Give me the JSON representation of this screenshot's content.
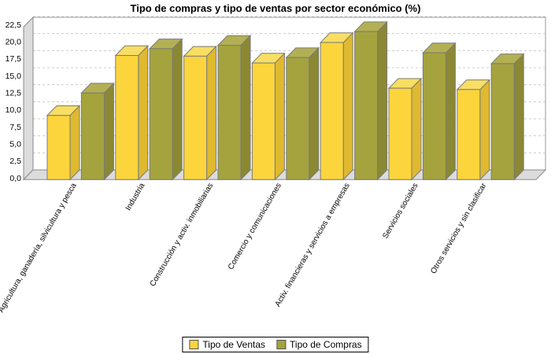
{
  "title": "Tipo de compras y tipo de ventas por sector económico (%)",
  "legend": {
    "items": [
      {
        "label": "Tipo de Ventas",
        "color": "#FCD53D"
      },
      {
        "label": "Tipo de Compras",
        "color": "#A5A33E"
      }
    ]
  },
  "colors": {
    "ventas": {
      "front": "#FCD53D",
      "top": "#F8DE62",
      "side": "#DFB92F"
    },
    "compras": {
      "front": "#A5A33E",
      "top": "#B3B054",
      "side": "#8A8833"
    },
    "bar_outline": "#7A7A7A",
    "wall_fill": "#DCDCDC",
    "wall_outline": "#888888",
    "gridline": "#CCCCCC",
    "plot_border": "#999999",
    "text": "#000000"
  },
  "chart_data": {
    "type": "bar",
    "effect": "3d",
    "title": "Tipo de compras y tipo de ventas por sector económico (%)",
    "categories": [
      "Agricultura, ganadería, silvicultura y pesca",
      "Industria",
      "Construcción y activ. inmobiliarias",
      "Comercio y comunicaciones",
      "Activ. financieras y servicios a empresas",
      "Servicios sociales",
      "Otros servicios y sin clasificar"
    ],
    "series": [
      {
        "name": "Tipo de Ventas",
        "values": [
          9.4,
          18.2,
          18.1,
          17.1,
          20.1,
          13.4,
          13.2
        ]
      },
      {
        "name": "Tipo de Compras",
        "values": [
          12.7,
          19.2,
          19.7,
          17.9,
          21.7,
          18.6,
          17.0
        ]
      }
    ],
    "xlabel": "",
    "ylabel": "",
    "ylim": [
      0,
      22.5
    ],
    "ytick_step": 2.5,
    "ytick_labels": [
      "0,0",
      "2,5",
      "5,0",
      "7,5",
      "10,0",
      "12,5",
      "15,0",
      "17,5",
      "20,0",
      "22,5"
    ],
    "grid": "horizontal-dashed",
    "legend_position": "bottom"
  }
}
